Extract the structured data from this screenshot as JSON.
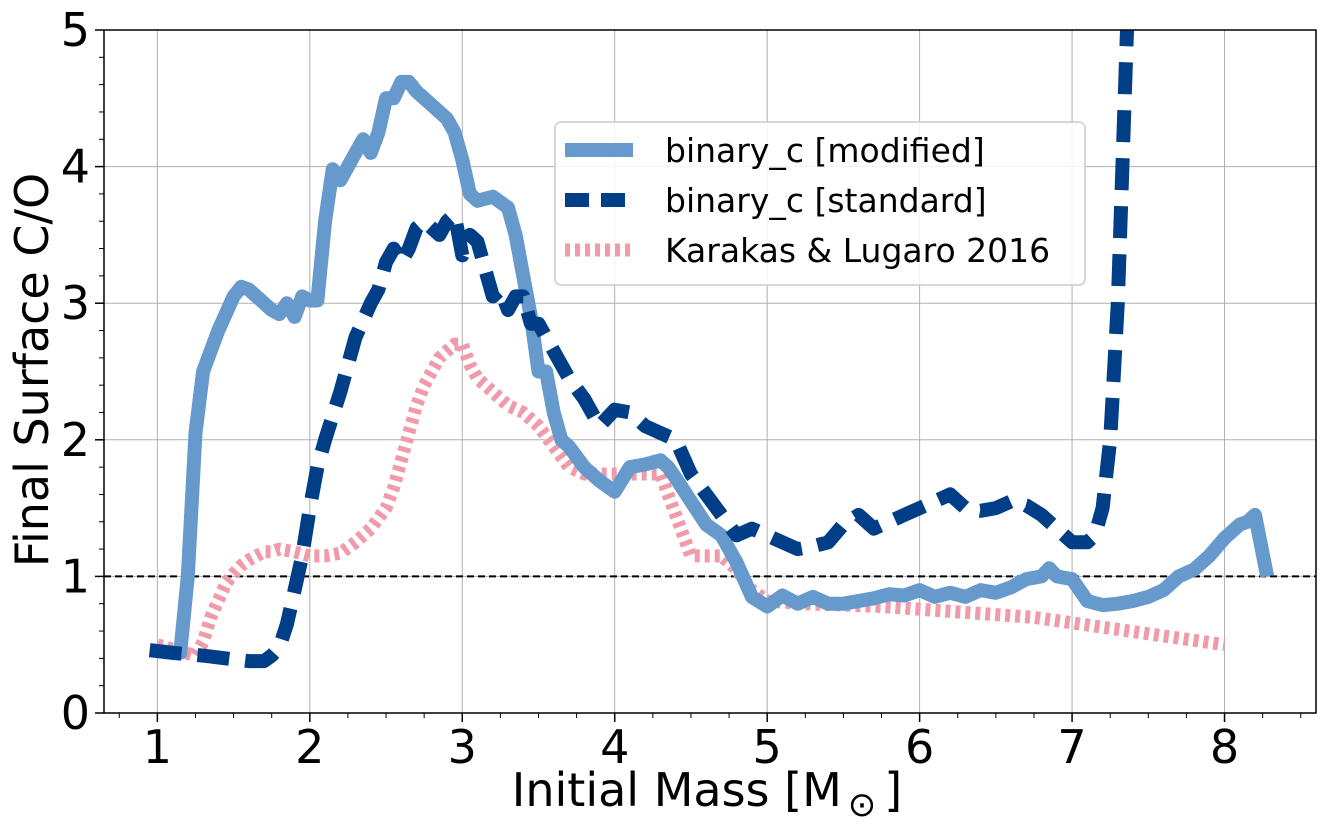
{
  "chart_data": {
    "type": "line",
    "xlabel": "Initial Mass [M",
    "xlabel_sub": "⊙",
    "xlabel_end": "]",
    "ylabel": "Final Surface C/O",
    "xlim": [
      0.65,
      8.6
    ],
    "ylim": [
      0,
      5
    ],
    "xticks": [
      1,
      2,
      3,
      4,
      5,
      6,
      7,
      8
    ],
    "yticks": [
      0,
      1,
      2,
      3,
      4,
      5
    ],
    "grid": true,
    "reference_line": {
      "y": 1,
      "style": "dashed",
      "color": "#000000"
    },
    "legend_position": "upper-center",
    "series": [
      {
        "name": "binary_c [modified]",
        "style": "solid",
        "color": "#6699cc",
        "x": [
          0.95,
          1.15,
          1.2,
          1.25,
          1.3,
          1.4,
          1.5,
          1.55,
          1.6,
          1.65,
          1.7,
          1.75,
          1.8,
          1.85,
          1.9,
          1.95,
          2.0,
          2.05,
          2.1,
          2.15,
          2.2,
          2.25,
          2.3,
          2.35,
          2.4,
          2.45,
          2.5,
          2.55,
          2.6,
          2.65,
          2.7,
          2.8,
          2.9,
          2.95,
          3.0,
          3.05,
          3.1,
          3.2,
          3.3,
          3.35,
          3.4,
          3.45,
          3.5,
          3.55,
          3.6,
          3.65,
          3.7,
          3.8,
          3.9,
          4.0,
          4.1,
          4.2,
          4.3,
          4.35,
          4.4,
          4.5,
          4.6,
          4.7,
          4.8,
          4.9,
          5.0,
          5.1,
          5.2,
          5.3,
          5.4,
          5.5,
          5.6,
          5.7,
          5.8,
          5.9,
          6.0,
          6.1,
          6.2,
          6.3,
          6.4,
          6.5,
          6.6,
          6.7,
          6.8,
          6.85,
          6.9,
          7.0,
          7.1,
          7.2,
          7.3,
          7.4,
          7.5,
          7.6,
          7.7,
          7.8,
          7.9,
          8.0,
          8.1,
          8.15,
          8.2,
          8.28
        ],
        "y": [
          0.46,
          0.44,
          1.0,
          2.05,
          2.5,
          2.8,
          3.05,
          3.12,
          3.1,
          3.05,
          3.0,
          2.95,
          2.92,
          3.0,
          2.9,
          3.05,
          3.02,
          3.02,
          3.6,
          3.98,
          3.9,
          4.0,
          4.1,
          4.2,
          4.1,
          4.25,
          4.5,
          4.5,
          4.62,
          4.62,
          4.55,
          4.45,
          4.35,
          4.25,
          4.05,
          3.8,
          3.75,
          3.78,
          3.7,
          3.5,
          3.2,
          2.9,
          2.5,
          2.5,
          2.2,
          2.0,
          1.95,
          1.8,
          1.7,
          1.62,
          1.8,
          1.82,
          1.85,
          1.8,
          1.72,
          1.55,
          1.38,
          1.3,
          1.1,
          0.85,
          0.78,
          0.86,
          0.8,
          0.85,
          0.8,
          0.8,
          0.82,
          0.84,
          0.87,
          0.86,
          0.9,
          0.85,
          0.88,
          0.85,
          0.9,
          0.88,
          0.92,
          0.98,
          1.0,
          1.06,
          1.0,
          0.98,
          0.82,
          0.79,
          0.8,
          0.82,
          0.85,
          0.9,
          1.0,
          1.05,
          1.15,
          1.28,
          1.38,
          1.4,
          1.45,
          1.0
        ]
      },
      {
        "name": "binary_c [standard]",
        "style": "dashed",
        "color": "#003f87",
        "x": [
          0.95,
          1.1,
          1.3,
          1.45,
          1.6,
          1.7,
          1.75,
          1.8,
          1.85,
          1.9,
          1.95,
          2.0,
          2.05,
          2.1,
          2.2,
          2.3,
          2.4,
          2.45,
          2.5,
          2.55,
          2.6,
          2.65,
          2.7,
          2.75,
          2.8,
          2.85,
          2.9,
          2.95,
          3.0,
          3.05,
          3.1,
          3.15,
          3.2,
          3.25,
          3.3,
          3.35,
          3.4,
          3.45,
          3.5,
          3.55,
          3.6,
          3.7,
          3.8,
          3.9,
          4.0,
          4.1,
          4.2,
          4.3,
          4.4,
          4.5,
          4.6,
          4.7,
          4.8,
          4.9,
          5.0,
          5.1,
          5.2,
          5.3,
          5.4,
          5.5,
          5.6,
          5.7,
          5.8,
          5.9,
          6.0,
          6.1,
          6.2,
          6.3,
          6.4,
          6.5,
          6.6,
          6.7,
          6.8,
          6.9,
          7.0,
          7.1,
          7.15,
          7.2,
          7.25,
          7.3,
          7.33,
          7.36
        ],
        "y": [
          0.46,
          0.44,
          0.42,
          0.4,
          0.38,
          0.38,
          0.42,
          0.48,
          0.65,
          0.9,
          1.15,
          1.5,
          1.8,
          2.0,
          2.35,
          2.75,
          3.0,
          3.1,
          3.3,
          3.4,
          3.3,
          3.4,
          3.55,
          3.6,
          3.55,
          3.5,
          3.6,
          3.65,
          3.35,
          3.5,
          3.45,
          3.25,
          3.05,
          3.1,
          2.95,
          3.05,
          3.05,
          2.85,
          2.85,
          2.75,
          2.65,
          2.45,
          2.3,
          2.1,
          2.22,
          2.2,
          2.1,
          2.05,
          2.0,
          1.75,
          1.6,
          1.45,
          1.3,
          1.35,
          1.3,
          1.25,
          1.2,
          1.22,
          1.25,
          1.38,
          1.45,
          1.35,
          1.4,
          1.45,
          1.5,
          1.55,
          1.6,
          1.5,
          1.48,
          1.5,
          1.55,
          1.52,
          1.45,
          1.35,
          1.25,
          1.25,
          1.3,
          1.5,
          2.0,
          3.0,
          4.0,
          5.0
        ]
      },
      {
        "name": "Karakas & Lugaro 2016",
        "style": "dotted",
        "color": "#f09aaa",
        "x": [
          1.0,
          1.25,
          1.3,
          1.35,
          1.45,
          1.5,
          1.55,
          1.6,
          1.65,
          1.7,
          1.75,
          1.8,
          1.9,
          2.0,
          2.1,
          2.2,
          2.3,
          2.4,
          2.5,
          2.55,
          2.6,
          2.65,
          2.7,
          2.75,
          2.8,
          2.85,
          2.9,
          2.95,
          3.0,
          3.05,
          3.1,
          3.2,
          3.3,
          3.4,
          3.5,
          3.6,
          3.7,
          3.8,
          3.9,
          4.0,
          4.1,
          4.2,
          4.3,
          4.35,
          4.4,
          4.45,
          4.5,
          4.6,
          4.7,
          4.8,
          4.9,
          5.0,
          5.25,
          5.5,
          5.75,
          6.0,
          6.25,
          6.5,
          6.75,
          7.0,
          7.25,
          7.5,
          7.75,
          8.0
        ],
        "y": [
          0.5,
          0.42,
          0.52,
          0.7,
          0.95,
          1.02,
          1.08,
          1.12,
          1.15,
          1.18,
          1.18,
          1.2,
          1.18,
          1.15,
          1.15,
          1.17,
          1.25,
          1.35,
          1.5,
          1.65,
          1.85,
          2.05,
          2.25,
          2.4,
          2.5,
          2.6,
          2.65,
          2.7,
          2.7,
          2.55,
          2.45,
          2.35,
          2.25,
          2.2,
          2.1,
          1.95,
          1.8,
          1.75,
          1.75,
          1.75,
          1.75,
          1.75,
          1.75,
          1.6,
          1.45,
          1.3,
          1.15,
          1.15,
          1.15,
          1.05,
          0.9,
          0.82,
          0.8,
          0.79,
          0.78,
          0.76,
          0.74,
          0.72,
          0.7,
          0.66,
          0.62,
          0.58,
          0.54,
          0.5
        ]
      }
    ]
  }
}
